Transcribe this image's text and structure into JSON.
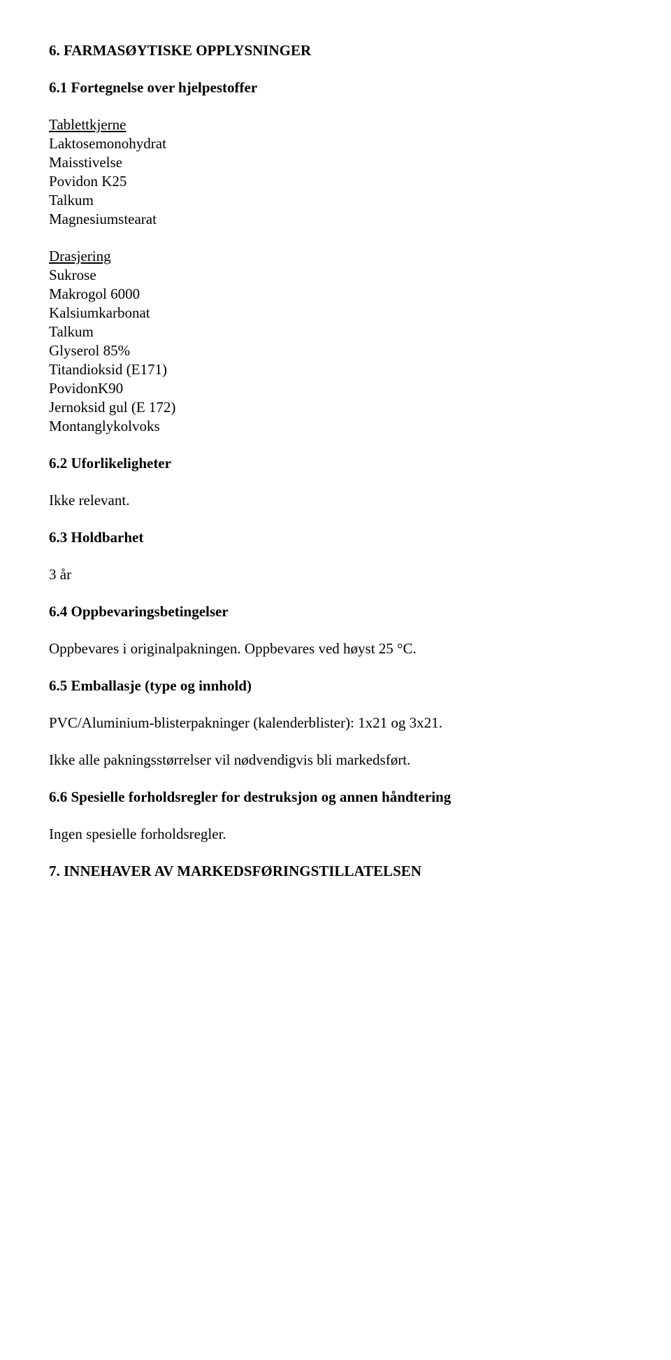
{
  "section6": {
    "heading": "6. FARMASØYTISKE OPPLYSNINGER",
    "s61": {
      "heading": "6.1 Fortegnelse over hjelpestoffer",
      "group1_title": "Tablettkjerne",
      "group1_items": [
        "Laktosemonohydrat",
        "Maisstivelse",
        "Povidon K25",
        "Talkum",
        "Magnesiumstearat"
      ],
      "group2_title": "Drasjering",
      "group2_items": [
        "Sukrose",
        "Makrogol 6000",
        "Kalsiumkarbonat",
        "Talkum",
        "Glyserol 85%",
        "Titandioksid (E171)",
        "PovidonK90",
        "Jernoksid gul (E 172)",
        "Montanglykolvoks"
      ]
    },
    "s62": {
      "heading": "6.2 Uforlikeligheter",
      "text": "Ikke relevant."
    },
    "s63": {
      "heading": "6.3 Holdbarhet",
      "text": "3 år"
    },
    "s64": {
      "heading": "6.4 Oppbevaringsbetingelser",
      "text": "Oppbevares i originalpakningen. Oppbevares ved høyst 25 °C."
    },
    "s65": {
      "heading": "6.5 Emballasje (type og innhold)",
      "text1": "PVC/Aluminium-blisterpakninger (kalenderblister): 1x21 og 3x21.",
      "text2": "Ikke alle pakningsstørrelser vil nødvendigvis bli markedsført."
    },
    "s66": {
      "heading": "6.6 Spesielle forholdsregler for destruksjon og annen håndtering",
      "text": "Ingen spesielle forholdsregler."
    }
  },
  "section7": {
    "heading": "7. INNEHAVER AV MARKEDSFØRINGSTILLATELSEN"
  }
}
